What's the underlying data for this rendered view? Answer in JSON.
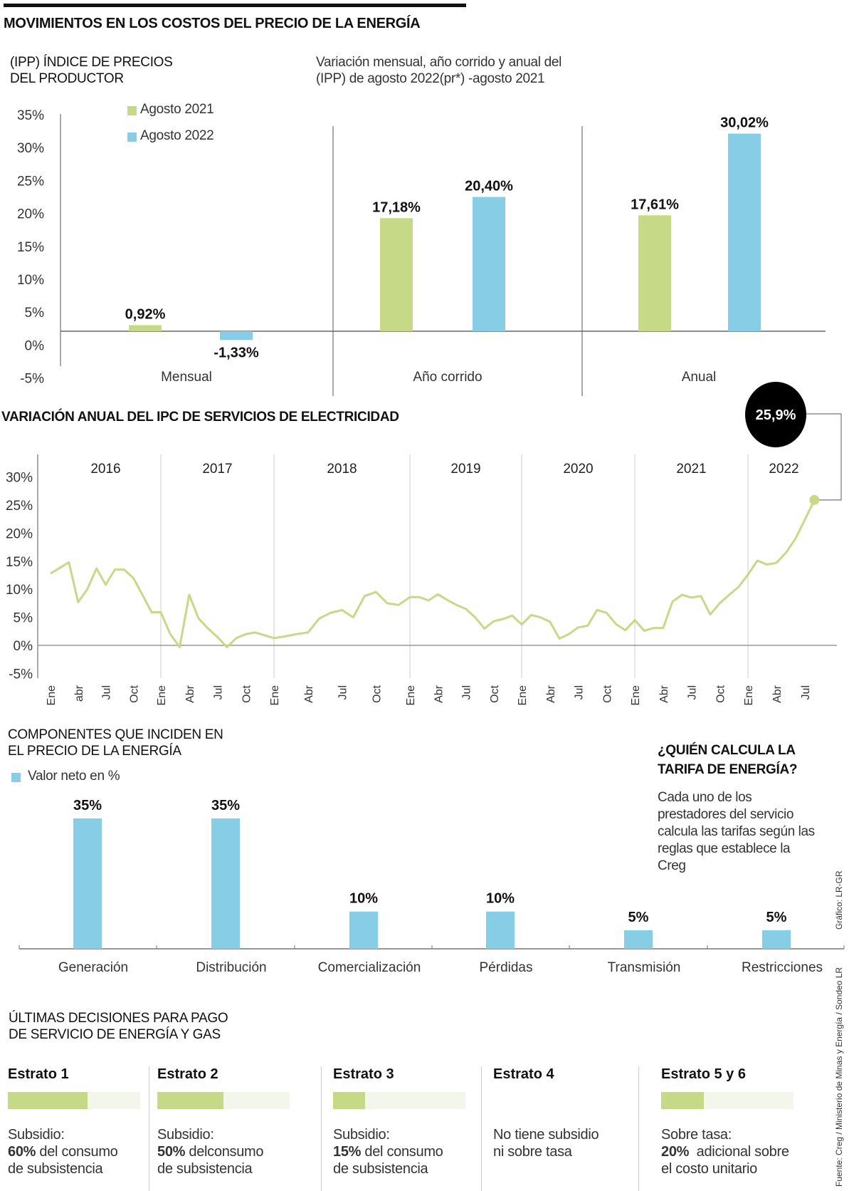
{
  "title": "MOVIMIENTOS EN LOS COSTOS DEL PRECIO DE LA ENERGÍA",
  "colors": {
    "green": "#c5d986",
    "blue": "#87cde5",
    "bar_bg": "#f3f6ea",
    "callout": "#000000"
  },
  "chart_data": [
    {
      "type": "bar",
      "title": "(IPP) ÍNDICE DE PRECIOS DEL PRODUCTOR",
      "subtitle": "Variación mensual, año corrido y anual del (IPP) de agosto 2022(pr*) -agosto 2021",
      "categories": [
        "Mensual",
        "Año corrido",
        "Anual"
      ],
      "series": [
        {
          "name": "Agosto 2021",
          "values": [
            0.92,
            17.18,
            17.61
          ],
          "labels": [
            "0,92%",
            "17,18%",
            "17,61%"
          ],
          "color": "#c5d986"
        },
        {
          "name": "Agosto 2022",
          "values": [
            -1.33,
            20.4,
            30.02
          ],
          "labels": [
            "-1,33%",
            "20,40%",
            "30,02%"
          ],
          "color": "#87cde5"
        }
      ],
      "yticks": [
        "35%",
        "30%",
        "25%",
        "20%",
        "15%",
        "10%",
        "5%",
        "0%",
        "-5%"
      ],
      "ylim": [
        -5,
        35
      ],
      "legend": "top-left",
      "grid": false
    },
    {
      "type": "line",
      "title": "VARIACIÓN ANUAL DEL IPC DE SERVICIOS DE ELECTRICIDAD",
      "years": [
        "2016",
        "2017",
        "2018",
        "2019",
        "2020",
        "2021",
        "2022"
      ],
      "yticks": [
        "30%",
        "25%",
        "20%",
        "15%",
        "10%",
        "5%",
        "0%",
        "-5%"
      ],
      "ylim": [
        -5,
        30
      ],
      "callout": "25,9%",
      "month_ticks": [
        {
          "label": "Ene",
          "date": "2016-01"
        },
        {
          "label": "abr",
          "date": "2016-04"
        },
        {
          "label": "Jul",
          "date": "2016-07"
        },
        {
          "label": "Oct",
          "date": "2016-10"
        },
        {
          "label": "Ene",
          "date": "2017-01"
        },
        {
          "label": "Abr",
          "date": "2017-04"
        },
        {
          "label": "Jul",
          "date": "2017-07"
        },
        {
          "label": "Oct",
          "date": "2017-10"
        },
        {
          "label": "Ene",
          "date": "2018-01"
        },
        {
          "label": "Abr",
          "date": "2018-04"
        },
        {
          "label": "Jul",
          "date": "2018-07"
        },
        {
          "label": "Oct",
          "date": "2018-10"
        },
        {
          "label": "Ene",
          "date": "2019-01"
        },
        {
          "label": "Abr",
          "date": "2019-04"
        },
        {
          "label": "Jul",
          "date": "2019-07"
        },
        {
          "label": "Oct",
          "date": "2019-10"
        },
        {
          "label": "Ene",
          "date": "2020-01"
        },
        {
          "label": "Abr",
          "date": "2020-04"
        },
        {
          "label": "Jul",
          "date": "2020-07"
        },
        {
          "label": "Oct",
          "date": "2020-10"
        },
        {
          "label": "Ene",
          "date": "2021-01"
        },
        {
          "label": "Abr",
          "date": "2021-04"
        },
        {
          "label": "Jul",
          "date": "2021-07"
        },
        {
          "label": "Oct",
          "date": "2021-10"
        },
        {
          "label": "Ene",
          "date": "2022-01"
        },
        {
          "label": "Abr",
          "date": "2022-04"
        },
        {
          "label": "Jul",
          "date": "2022-07"
        }
      ],
      "series": [
        {
          "color": "#c5d986",
          "points": [
            [
              "2016-01",
              12.8
            ],
            [
              "2016-02",
              13.8
            ],
            [
              "2016-03",
              14.8
            ],
            [
              "2016-04",
              7.7
            ],
            [
              "2016-05",
              10.0
            ],
            [
              "2016-06",
              13.7
            ],
            [
              "2016-07",
              10.8
            ],
            [
              "2016-08",
              13.5
            ],
            [
              "2016-09",
              13.5
            ],
            [
              "2016-10",
              12.0
            ],
            [
              "2016-11",
              9.0
            ],
            [
              "2016-12",
              5.9
            ],
            [
              "2017-01",
              5.9
            ],
            [
              "2017-02",
              2.0
            ],
            [
              "2017-03",
              -0.3
            ],
            [
              "2017-04",
              9.0
            ],
            [
              "2017-05",
              4.8
            ],
            [
              "2017-06",
              3.0
            ],
            [
              "2017-07",
              1.5
            ],
            [
              "2017-08",
              -0.3
            ],
            [
              "2017-09",
              1.3
            ],
            [
              "2017-10",
              2.0
            ],
            [
              "2017-11",
              2.3
            ],
            [
              "2017-12",
              1.8
            ],
            [
              "2018-01",
              1.3
            ],
            [
              "2018-02",
              1.6
            ],
            [
              "2018-03",
              2.0
            ],
            [
              "2018-04",
              2.3
            ],
            [
              "2018-05",
              4.8
            ],
            [
              "2018-06",
              5.8
            ],
            [
              "2018-07",
              6.3
            ],
            [
              "2018-08",
              5.0
            ],
            [
              "2018-09",
              8.8
            ],
            [
              "2018-10",
              9.5
            ],
            [
              "2018-11",
              7.5
            ],
            [
              "2018-12",
              7.2
            ],
            [
              "2019-01",
              8.6
            ],
            [
              "2019-02",
              8.6
            ],
            [
              "2019-03",
              8.0
            ],
            [
              "2019-04",
              9.1
            ],
            [
              "2019-05",
              8.1
            ],
            [
              "2019-06",
              7.2
            ],
            [
              "2019-07",
              6.5
            ],
            [
              "2019-08",
              5.0
            ],
            [
              "2019-09",
              3.0
            ],
            [
              "2019-10",
              4.3
            ],
            [
              "2019-11",
              4.7
            ],
            [
              "2019-12",
              5.3
            ],
            [
              "2020-01",
              3.7
            ],
            [
              "2020-02",
              5.4
            ],
            [
              "2020-03",
              5.0
            ],
            [
              "2020-04",
              4.2
            ],
            [
              "2020-05",
              1.2
            ],
            [
              "2020-06",
              2.0
            ],
            [
              "2020-07",
              3.2
            ],
            [
              "2020-08",
              3.5
            ],
            [
              "2020-09",
              6.3
            ],
            [
              "2020-10",
              5.8
            ],
            [
              "2020-11",
              3.8
            ],
            [
              "2020-12",
              2.7
            ],
            [
              "2021-01",
              4.5
            ],
            [
              "2021-02",
              2.6
            ],
            [
              "2021-03",
              3.1
            ],
            [
              "2021-04",
              3.1
            ],
            [
              "2021-05",
              7.8
            ],
            [
              "2021-06",
              9.0
            ],
            [
              "2021-07",
              8.5
            ],
            [
              "2021-08",
              8.8
            ],
            [
              "2021-09",
              5.5
            ],
            [
              "2021-10",
              7.5
            ],
            [
              "2021-11",
              9.0
            ],
            [
              "2021-12",
              10.4
            ],
            [
              "2022-01",
              12.6
            ],
            [
              "2022-02",
              15.1
            ],
            [
              "2022-03",
              14.4
            ],
            [
              "2022-04",
              14.7
            ],
            [
              "2022-05",
              16.5
            ],
            [
              "2022-06",
              19.0
            ],
            [
              "2022-07",
              22.4
            ],
            [
              "2022-08",
              25.9
            ]
          ]
        }
      ],
      "grid": "vertical year dividers"
    },
    {
      "type": "bar",
      "title": "COMPONENTES QUE INCIDEN EN EL PRECIO DE LA ENERGÍA",
      "legend_label": "Valor neto en %",
      "categories": [
        "Generación",
        "Distribución",
        "Comercialización",
        "Pérdidas",
        "Transmisión",
        "Restricciones"
      ],
      "values": [
        35,
        35,
        10,
        10,
        5,
        5
      ],
      "labels": [
        "35%",
        "35%",
        "10%",
        "10%",
        "5%",
        "5%"
      ],
      "color": "#87cde5",
      "ylim": [
        0,
        35
      ]
    }
  ],
  "ipp": {
    "title_l1": "(IPP) ÍNDICE DE PRECIOS",
    "title_l2": "DEL PRODUCTOR",
    "sub_l1": "Variación mensual, año corrido y anual del",
    "sub_l2": "(IPP) de agosto 2022(pr*) -agosto 2021"
  },
  "comp": {
    "title_l1": "COMPONENTES QUE INCIDEN EN",
    "title_l2": "EL PRECIO DE LA ENERGÍA"
  },
  "quien": {
    "title_l1": "¿QUIÉN CALCULA LA",
    "title_l2": "TARIFA DE ENERGÍA?",
    "body": "Cada uno de los prestadores del servicio calcula las tarifas según las reglas que establece la Creg"
  },
  "decisiones": {
    "title_l1": "ÚLTIMAS DECISIONES PARA PAGO",
    "title_l2": "DE SERVICIO DE ENERGÍA Y GAS",
    "items": [
      {
        "name": "Estrato 1",
        "fill": 0.6,
        "l1": "Subsidio:",
        "bold": "60%",
        "l2": " del consumo",
        "l3": "de subsistencia"
      },
      {
        "name": "Estrato 2",
        "fill": 0.5,
        "l1": "Subsidio:",
        "bold": "50%",
        "l2": " delconsumo",
        "l3": "de subsistencia"
      },
      {
        "name": "Estrato 3",
        "fill": 0.24,
        "l1": "Subsidio:",
        "bold": "15%",
        "l2": " del consumo",
        "l3": "de subsistencia"
      },
      {
        "name": "Estrato 4",
        "fill": null,
        "l1": "No tiene subsidio",
        "bold": "",
        "l2": "ni sobre tasa",
        "l3": ""
      },
      {
        "name": "Estrato 5 y 6",
        "fill": 0.32,
        "l1": "Sobre tasa:",
        "bold": "20%",
        "l2": "  adicional sobre",
        "l3": "el costo unitario"
      }
    ]
  },
  "credits": {
    "grafico": "Gráfico: LR-GR",
    "fuente": "Fuente: Creg / Ministerio de Minas y Energía / Sondeo LR"
  }
}
